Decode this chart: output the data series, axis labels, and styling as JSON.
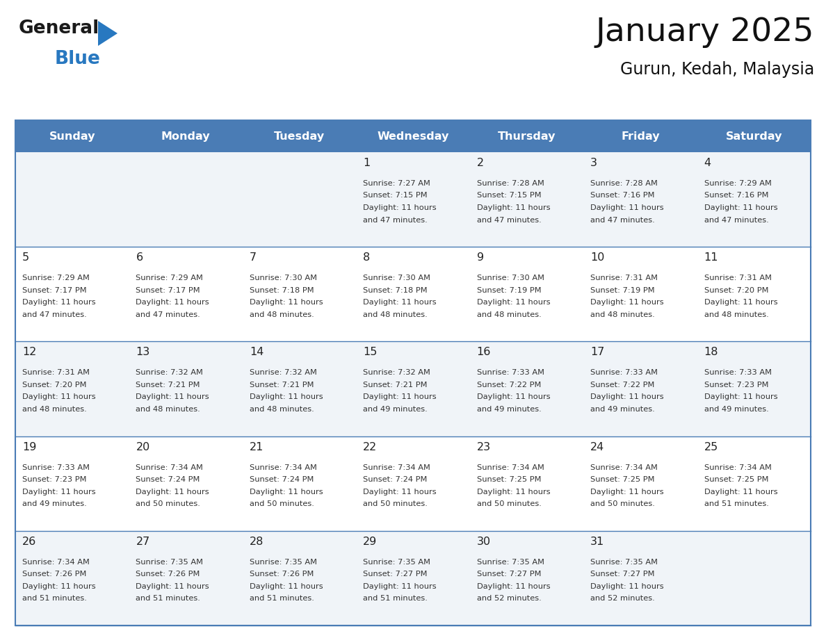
{
  "title": "January 2025",
  "subtitle": "Gurun, Kedah, Malaysia",
  "header_bg_color": "#4a7cb5",
  "header_text_color": "#ffffff",
  "header_days": [
    "Sunday",
    "Monday",
    "Tuesday",
    "Wednesday",
    "Thursday",
    "Friday",
    "Saturday"
  ],
  "row_bg_colors": [
    "#f0f4f8",
    "#ffffff",
    "#f0f4f8",
    "#ffffff",
    "#f0f4f8"
  ],
  "cell_text_color": "#333333",
  "day_number_color": "#222222",
  "border_color": "#4a7cb5",
  "inner_line_color": "#4a7cb5",
  "logo_general_color": "#1a1a1a",
  "logo_blue_color": "#2878c0",
  "calendar_data": [
    [
      null,
      null,
      null,
      {
        "day": 1,
        "sunrise": "7:27 AM",
        "sunset": "7:15 PM",
        "daylight": "11 hours",
        "daylight2": "and 47 minutes."
      },
      {
        "day": 2,
        "sunrise": "7:28 AM",
        "sunset": "7:15 PM",
        "daylight": "11 hours",
        "daylight2": "and 47 minutes."
      },
      {
        "day": 3,
        "sunrise": "7:28 AM",
        "sunset": "7:16 PM",
        "daylight": "11 hours",
        "daylight2": "and 47 minutes."
      },
      {
        "day": 4,
        "sunrise": "7:29 AM",
        "sunset": "7:16 PM",
        "daylight": "11 hours",
        "daylight2": "and 47 minutes."
      }
    ],
    [
      {
        "day": 5,
        "sunrise": "7:29 AM",
        "sunset": "7:17 PM",
        "daylight": "11 hours",
        "daylight2": "and 47 minutes."
      },
      {
        "day": 6,
        "sunrise": "7:29 AM",
        "sunset": "7:17 PM",
        "daylight": "11 hours",
        "daylight2": "and 47 minutes."
      },
      {
        "day": 7,
        "sunrise": "7:30 AM",
        "sunset": "7:18 PM",
        "daylight": "11 hours",
        "daylight2": "and 48 minutes."
      },
      {
        "day": 8,
        "sunrise": "7:30 AM",
        "sunset": "7:18 PM",
        "daylight": "11 hours",
        "daylight2": "and 48 minutes."
      },
      {
        "day": 9,
        "sunrise": "7:30 AM",
        "sunset": "7:19 PM",
        "daylight": "11 hours",
        "daylight2": "and 48 minutes."
      },
      {
        "day": 10,
        "sunrise": "7:31 AM",
        "sunset": "7:19 PM",
        "daylight": "11 hours",
        "daylight2": "and 48 minutes."
      },
      {
        "day": 11,
        "sunrise": "7:31 AM",
        "sunset": "7:20 PM",
        "daylight": "11 hours",
        "daylight2": "and 48 minutes."
      }
    ],
    [
      {
        "day": 12,
        "sunrise": "7:31 AM",
        "sunset": "7:20 PM",
        "daylight": "11 hours",
        "daylight2": "and 48 minutes."
      },
      {
        "day": 13,
        "sunrise": "7:32 AM",
        "sunset": "7:21 PM",
        "daylight": "11 hours",
        "daylight2": "and 48 minutes."
      },
      {
        "day": 14,
        "sunrise": "7:32 AM",
        "sunset": "7:21 PM",
        "daylight": "11 hours",
        "daylight2": "and 48 minutes."
      },
      {
        "day": 15,
        "sunrise": "7:32 AM",
        "sunset": "7:21 PM",
        "daylight": "11 hours",
        "daylight2": "and 49 minutes."
      },
      {
        "day": 16,
        "sunrise": "7:33 AM",
        "sunset": "7:22 PM",
        "daylight": "11 hours",
        "daylight2": "and 49 minutes."
      },
      {
        "day": 17,
        "sunrise": "7:33 AM",
        "sunset": "7:22 PM",
        "daylight": "11 hours",
        "daylight2": "and 49 minutes."
      },
      {
        "day": 18,
        "sunrise": "7:33 AM",
        "sunset": "7:23 PM",
        "daylight": "11 hours",
        "daylight2": "and 49 minutes."
      }
    ],
    [
      {
        "day": 19,
        "sunrise": "7:33 AM",
        "sunset": "7:23 PM",
        "daylight": "11 hours",
        "daylight2": "and 49 minutes."
      },
      {
        "day": 20,
        "sunrise": "7:34 AM",
        "sunset": "7:24 PM",
        "daylight": "11 hours",
        "daylight2": "and 50 minutes."
      },
      {
        "day": 21,
        "sunrise": "7:34 AM",
        "sunset": "7:24 PM",
        "daylight": "11 hours",
        "daylight2": "and 50 minutes."
      },
      {
        "day": 22,
        "sunrise": "7:34 AM",
        "sunset": "7:24 PM",
        "daylight": "11 hours",
        "daylight2": "and 50 minutes."
      },
      {
        "day": 23,
        "sunrise": "7:34 AM",
        "sunset": "7:25 PM",
        "daylight": "11 hours",
        "daylight2": "and 50 minutes."
      },
      {
        "day": 24,
        "sunrise": "7:34 AM",
        "sunset": "7:25 PM",
        "daylight": "11 hours",
        "daylight2": "and 50 minutes."
      },
      {
        "day": 25,
        "sunrise": "7:34 AM",
        "sunset": "7:25 PM",
        "daylight": "11 hours",
        "daylight2": "and 51 minutes."
      }
    ],
    [
      {
        "day": 26,
        "sunrise": "7:34 AM",
        "sunset": "7:26 PM",
        "daylight": "11 hours",
        "daylight2": "and 51 minutes."
      },
      {
        "day": 27,
        "sunrise": "7:35 AM",
        "sunset": "7:26 PM",
        "daylight": "11 hours",
        "daylight2": "and 51 minutes."
      },
      {
        "day": 28,
        "sunrise": "7:35 AM",
        "sunset": "7:26 PM",
        "daylight": "11 hours",
        "daylight2": "and 51 minutes."
      },
      {
        "day": 29,
        "sunrise": "7:35 AM",
        "sunset": "7:27 PM",
        "daylight": "11 hours",
        "daylight2": "and 51 minutes."
      },
      {
        "day": 30,
        "sunrise": "7:35 AM",
        "sunset": "7:27 PM",
        "daylight": "11 hours",
        "daylight2": "and 52 minutes."
      },
      {
        "day": 31,
        "sunrise": "7:35 AM",
        "sunset": "7:27 PM",
        "daylight": "11 hours",
        "daylight2": "and 52 minutes."
      },
      null
    ]
  ],
  "fig_width": 11.88,
  "fig_height": 9.18,
  "dpi": 100
}
